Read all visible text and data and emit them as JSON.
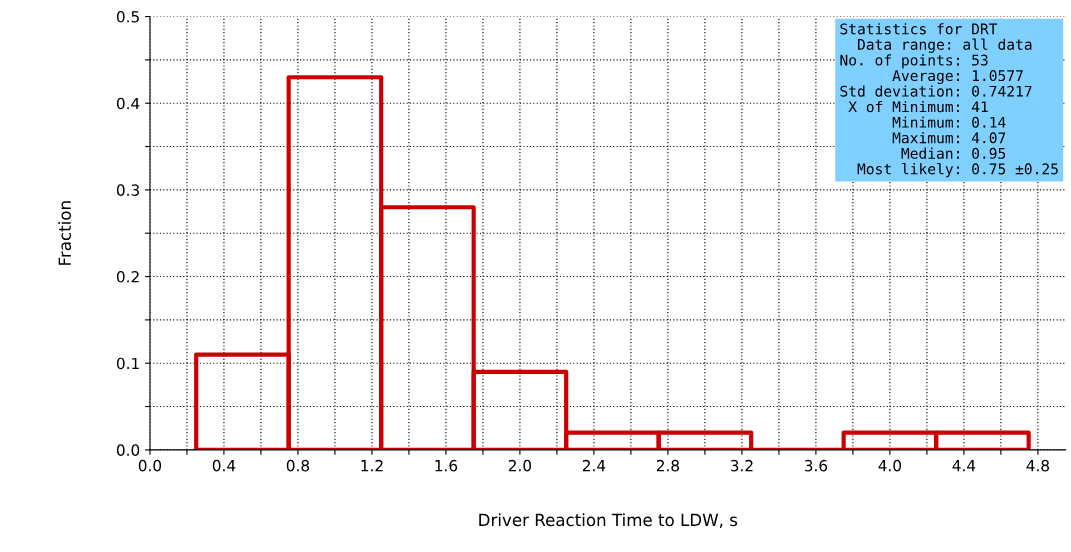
{
  "chart_data": {
    "type": "histogram",
    "xlabel": "Driver Reaction Time to LDW, s",
    "ylabel": "Fraction",
    "bins": [
      0.25,
      0.75,
      1.25,
      1.75,
      2.25,
      2.75,
      3.25,
      3.75,
      4.25,
      4.75
    ],
    "values": [
      0.11,
      0.43,
      0.28,
      0.09,
      0.02,
      0.02,
      0,
      0.02,
      0.02
    ],
    "color": "#cc0000",
    "xlim": [
      0,
      4.95
    ],
    "ylim": [
      0,
      0.5
    ],
    "xticks": [
      {
        "value": 0,
        "label": "0.0"
      },
      {
        "value": 0.2,
        "label": null
      },
      {
        "value": 0.4,
        "label": "0.4"
      },
      {
        "value": 0.6,
        "label": null
      },
      {
        "value": 0.8,
        "label": "0.8"
      },
      {
        "value": 1.0,
        "label": null
      },
      {
        "value": 1.2,
        "label": "1.2"
      },
      {
        "value": 1.4,
        "label": null
      },
      {
        "value": 1.6,
        "label": "1.6"
      },
      {
        "value": 1.8,
        "label": null
      },
      {
        "value": 2.0,
        "label": "2.0"
      },
      {
        "value": 2.2,
        "label": null
      },
      {
        "value": 2.4,
        "label": "2.4"
      },
      {
        "value": 2.6,
        "label": null
      },
      {
        "value": 2.8,
        "label": "2.8"
      },
      {
        "value": 3.0,
        "label": null
      },
      {
        "value": 3.2,
        "label": "3.2"
      },
      {
        "value": 3.4,
        "label": null
      },
      {
        "value": 3.6,
        "label": "3.6"
      },
      {
        "value": 3.8,
        "label": null
      },
      {
        "value": 4.0,
        "label": "4.0"
      },
      {
        "value": 4.2,
        "label": null
      },
      {
        "value": 4.4,
        "label": "4.4"
      },
      {
        "value": 4.6,
        "label": null
      },
      {
        "value": 4.8,
        "label": "4.8"
      }
    ],
    "yticks": [
      {
        "value": 0,
        "label": "0.0"
      },
      {
        "value": 0.05,
        "label": null
      },
      {
        "value": 0.1,
        "label": "0.1"
      },
      {
        "value": 0.15,
        "label": null
      },
      {
        "value": 0.2,
        "label": "0.2"
      },
      {
        "value": 0.25,
        "label": null
      },
      {
        "value": 0.3,
        "label": "0.3"
      },
      {
        "value": 0.35,
        "label": null
      },
      {
        "value": 0.4,
        "label": "0.4"
      },
      {
        "value": 0.45,
        "label": null
      },
      {
        "value": 0.5,
        "label": "0.5"
      }
    ],
    "grid": true,
    "annotations": [
      "Statistics for DRT",
      "  Data range: all data",
      "No. of points: 53",
      "      Average: 1.0577",
      "Std deviation: 0.74217",
      " X of Minimum: 41",
      "      Minimum: 0.14",
      "      Maximum: 4.07",
      "       Median: 0.95",
      "  Most likely: 0.75 ±0.25"
    ]
  }
}
